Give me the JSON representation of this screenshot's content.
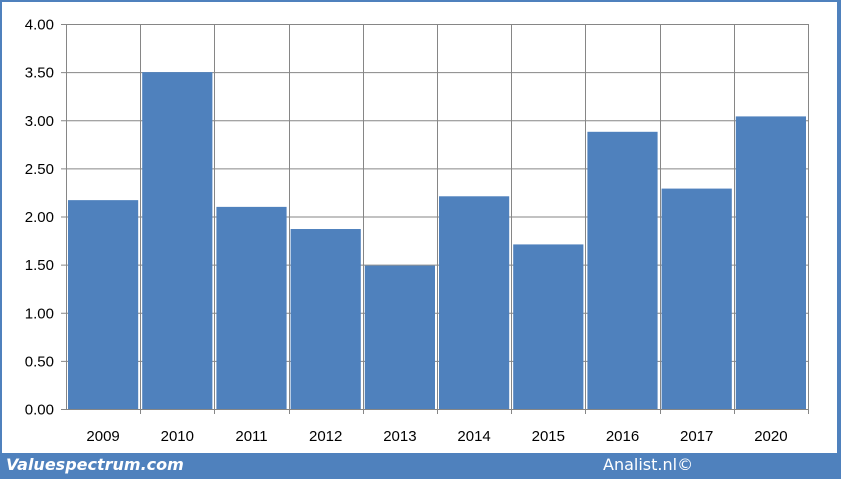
{
  "chart_data": {
    "type": "bar",
    "categories": [
      "2009",
      "2010",
      "2011",
      "2012",
      "2013",
      "2014",
      "2015",
      "2016",
      "2017",
      "2020"
    ],
    "values": [
      2.17,
      3.5,
      2.1,
      1.87,
      1.49,
      2.21,
      1.71,
      2.88,
      2.29,
      3.04
    ],
    "y_ticks": [
      "0.00",
      "0.50",
      "1.00",
      "1.50",
      "2.00",
      "2.50",
      "3.00",
      "3.50",
      "4.00"
    ],
    "ylim": [
      0,
      4
    ],
    "grid": true,
    "legend": "none",
    "bar_color": "#4f81bd",
    "title": "",
    "xlabel": "",
    "ylabel": ""
  },
  "footer": {
    "source_left": "Valuespectrum.com",
    "source_right": "Analist.nl©"
  },
  "colors": {
    "frame": "#4f81bd",
    "grid": "#868686"
  }
}
